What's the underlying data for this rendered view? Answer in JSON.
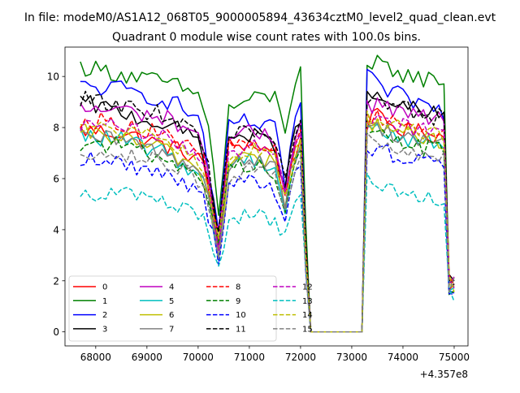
{
  "figure": {
    "suptitle": "In file: modeM0/AS1A12_068T05_9000005894_43634cztM0_level2_quad_clean.evt"
  },
  "chart_data": {
    "type": "line",
    "title": "Quadrant 0 module wise count rates with 100.0s bins.",
    "xlabel": "",
    "ylabel": "",
    "x_offset_label": "+4.357e8",
    "x_range": [
      67700,
      75000
    ],
    "xlim": [
      67400,
      75270
    ],
    "ylim": [
      -0.55,
      11.15
    ],
    "xticks": [
      68000,
      69000,
      70000,
      71000,
      72000,
      73000,
      74000,
      75000
    ],
    "yticks": [
      0,
      2,
      4,
      6,
      8,
      10
    ],
    "grid": false,
    "legend_placement": "lower-left",
    "legend_columns": 4,
    "anchors_x": [
      67700,
      68500,
      69500,
      70050,
      70200,
      70400,
      70600,
      71000,
      71500,
      71700,
      71850,
      72000,
      72100,
      72200,
      73200,
      73300,
      73500,
      74000,
      74400,
      74700,
      74850,
      74900
    ],
    "series": [
      {
        "name": "0",
        "color": "#ff0000",
        "dash": "solid",
        "values": [
          7.9,
          7.8,
          7.2,
          6.8,
          5.6,
          3.5,
          7.3,
          7.4,
          7.0,
          5.0,
          6.9,
          7.5,
          3.0,
          0.0,
          0.0,
          8.2,
          8.4,
          7.9,
          7.8,
          7.7,
          7.5,
          1.8
        ]
      },
      {
        "name": "1",
        "color": "#008000",
        "dash": "solid",
        "values": [
          10.4,
          10.1,
          9.7,
          9.2,
          8.2,
          4.5,
          8.7,
          9.1,
          9.2,
          8.0,
          9.5,
          10.3,
          4.0,
          0.0,
          0.0,
          10.1,
          10.5,
          10.1,
          9.9,
          9.9,
          9.8,
          2.0
        ]
      },
      {
        "name": "2",
        "color": "#0000ff",
        "dash": "solid",
        "values": [
          9.6,
          9.5,
          9.0,
          8.3,
          6.4,
          3.6,
          8.2,
          8.2,
          7.9,
          5.8,
          8.0,
          8.9,
          3.5,
          0.0,
          0.0,
          10.0,
          9.6,
          9.2,
          8.9,
          8.7,
          8.5,
          1.5
        ]
      },
      {
        "name": "3",
        "color": "#000000",
        "dash": "solid",
        "values": [
          9.0,
          8.6,
          8.0,
          7.5,
          6.2,
          3.5,
          7.6,
          7.7,
          7.3,
          5.8,
          7.5,
          8.1,
          3.2,
          0.0,
          0.0,
          9.2,
          9.1,
          8.8,
          8.6,
          8.5,
          8.3,
          2.0
        ]
      },
      {
        "name": "4",
        "color": "#bf00bf",
        "dash": "solid",
        "values": [
          8.7,
          8.7,
          8.3,
          7.7,
          6.0,
          3.8,
          7.6,
          7.8,
          7.5,
          5.5,
          7.5,
          8.2,
          3.2,
          0.0,
          0.0,
          8.9,
          8.9,
          8.6,
          8.4,
          8.3,
          8.1,
          2.2
        ]
      },
      {
        "name": "5",
        "color": "#00bfbf",
        "dash": "solid",
        "values": [
          7.7,
          7.5,
          6.9,
          6.1,
          5.2,
          3.0,
          6.6,
          6.8,
          6.5,
          4.7,
          6.6,
          7.2,
          2.8,
          0.0,
          0.0,
          8.0,
          7.9,
          7.6,
          7.4,
          7.4,
          7.2,
          1.8
        ]
      },
      {
        "name": "6",
        "color": "#bfbf00",
        "dash": "solid",
        "values": [
          7.8,
          7.6,
          7.0,
          6.3,
          5.3,
          3.1,
          6.7,
          6.9,
          6.6,
          4.9,
          6.8,
          7.4,
          2.9,
          0.0,
          0.0,
          8.3,
          8.1,
          7.8,
          7.6,
          7.5,
          7.4,
          1.9
        ]
      },
      {
        "name": "7",
        "color": "#808080",
        "dash": "solid",
        "values": [
          7.6,
          7.5,
          6.9,
          6.3,
          5.4,
          3.2,
          6.6,
          6.8,
          6.5,
          4.8,
          6.7,
          7.3,
          2.8,
          0.0,
          0.0,
          8.1,
          8.0,
          7.7,
          7.5,
          7.4,
          7.3,
          1.9
        ]
      },
      {
        "name": "8",
        "color": "#ff0000",
        "dash": "dashed",
        "values": [
          8.3,
          8.2,
          7.6,
          7.0,
          5.9,
          3.6,
          7.2,
          7.4,
          7.1,
          5.3,
          7.2,
          7.9,
          3.1,
          0.0,
          0.0,
          8.6,
          8.5,
          8.2,
          8.0,
          7.9,
          7.8,
          2.0
        ]
      },
      {
        "name": "9",
        "color": "#008000",
        "dash": "dashed",
        "values": [
          7.4,
          7.3,
          6.7,
          6.1,
          5.3,
          3.2,
          6.4,
          6.6,
          6.3,
          4.6,
          6.4,
          7.1,
          2.8,
          0.0,
          0.0,
          7.9,
          7.7,
          7.4,
          7.2,
          7.2,
          7.0,
          1.8
        ]
      },
      {
        "name": "10",
        "color": "#0000ff",
        "dash": "dashed",
        "values": [
          6.8,
          6.6,
          6.1,
          5.6,
          4.6,
          2.8,
          5.7,
          5.9,
          5.5,
          4.2,
          5.8,
          6.5,
          2.6,
          0.0,
          0.0,
          7.3,
          7.1,
          6.9,
          6.7,
          6.8,
          6.6,
          1.7
        ]
      },
      {
        "name": "11",
        "color": "#000000",
        "dash": "dashed",
        "values": [
          9.1,
          8.9,
          8.4,
          7.8,
          6.4,
          3.8,
          7.6,
          7.8,
          7.5,
          5.9,
          7.7,
          8.3,
          3.3,
          0.0,
          0.0,
          9.2,
          9.0,
          8.7,
          8.5,
          8.4,
          8.2,
          2.1
        ]
      },
      {
        "name": "12",
        "color": "#bf00bf",
        "dash": "dashed",
        "values": [
          8.1,
          8.0,
          7.5,
          6.9,
          5.9,
          3.5,
          7.1,
          7.3,
          7.0,
          5.3,
          7.1,
          7.8,
          3.1,
          0.0,
          0.0,
          8.5,
          8.4,
          8.1,
          7.9,
          7.9,
          7.7,
          2.0
        ]
      },
      {
        "name": "13",
        "color": "#00bfbf",
        "dash": "dashed",
        "values": [
          5.5,
          5.4,
          5.0,
          4.6,
          3.8,
          2.6,
          4.5,
          4.6,
          4.4,
          3.7,
          4.7,
          5.4,
          2.3,
          0.0,
          0.0,
          5.9,
          5.6,
          5.3,
          5.1,
          5.2,
          5.0,
          1.5
        ]
      },
      {
        "name": "14",
        "color": "#bfbf00",
        "dash": "dashed",
        "values": [
          8.0,
          7.9,
          7.3,
          6.7,
          5.7,
          3.4,
          6.9,
          7.1,
          6.8,
          5.1,
          6.9,
          7.6,
          3.0,
          0.0,
          0.0,
          8.4,
          8.3,
          8.0,
          7.8,
          7.7,
          7.6,
          1.9
        ]
      },
      {
        "name": "15",
        "color": "#808080",
        "dash": "dashed",
        "values": [
          7.1,
          7.0,
          6.5,
          5.9,
          5.0,
          3.0,
          6.1,
          6.3,
          6.0,
          4.5,
          6.2,
          6.9,
          2.7,
          0.0,
          0.0,
          7.6,
          7.4,
          7.1,
          6.9,
          6.8,
          6.7,
          1.8
        ]
      }
    ]
  }
}
